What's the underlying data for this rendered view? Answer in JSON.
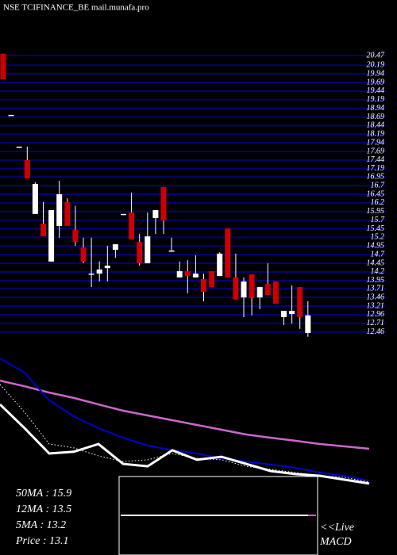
{
  "chart_data": {
    "type": "candlestick",
    "title": "NSE TCIFINANCE_BE mail.munafa.pro",
    "ylim": [
      12.2,
      20.7
    ],
    "yticks": [
      20.47,
      20.19,
      19.94,
      19.69,
      19.44,
      19.19,
      18.94,
      18.69,
      18.44,
      18.19,
      17.94,
      17.69,
      17.44,
      17.19,
      16.95,
      16.7,
      16.45,
      16.2,
      15.95,
      15.7,
      15.45,
      15.2,
      14.95,
      14.7,
      14.45,
      14.2,
      13.95,
      13.71,
      13.46,
      13.21,
      12.96,
      12.71,
      12.46
    ],
    "grid": true,
    "grid_color": "#000080",
    "up_color": "#ffffff",
    "down_color": "#cc0000",
    "open": [
      20.52,
      18.75,
      17.83,
      17.44,
      15.88,
      15.6,
      14.5,
      15.53,
      16.22,
      15.42,
      14.91,
      14.15,
      14.15,
      14.31,
      14.84,
      15.88,
      15.92,
      15.07,
      14.45,
      15.76,
      16.66,
      14.82,
      14.04,
      14.22,
      14.04,
      13.99,
      14.22,
      14.08,
      15.46,
      14.04,
      13.46,
      14.13,
      13.46,
      13.85,
      13.92,
      12.89,
      12.98,
      13.76,
      12.43
    ],
    "high": [
      20.52,
      18.75,
      17.83,
      17.83,
      16.8,
      16.22,
      15.99,
      16.84,
      16.33,
      16.11,
      15.19,
      15.19,
      14.5,
      14.96,
      15.0,
      15.88,
      16.5,
      15.3,
      15.92,
      15.99,
      16.66,
      15.19,
      14.5,
      14.54,
      14.68,
      14.15,
      14.22,
      14.77,
      15.46,
      14.73,
      14.04,
      14.13,
      13.76,
      14.45,
      13.92,
      13.07,
      13.81,
      13.76,
      13.35
    ],
    "low": [
      19.78,
      18.75,
      17.83,
      16.91,
      15.88,
      15.23,
      14.5,
      15.19,
      15.53,
      14.96,
      14.45,
      13.76,
      13.92,
      13.92,
      14.61,
      15.88,
      15.14,
      14.38,
      14.45,
      15.3,
      15.3,
      14.82,
      14.04,
      13.58,
      14.04,
      13.35,
      13.76,
      14.08,
      14.04,
      13.4,
      12.89,
      12.94,
      13.12,
      13.53,
      13.28,
      12.66,
      12.7,
      12.55,
      12.32
    ],
    "close": [
      19.78,
      18.75,
      17.83,
      16.91,
      16.75,
      15.23,
      15.99,
      16.45,
      15.53,
      15.07,
      14.5,
      14.15,
      14.27,
      14.38,
      15.0,
      15.88,
      15.14,
      14.45,
      15.23,
      15.99,
      15.69,
      14.82,
      14.22,
      14.08,
      14.15,
      13.62,
      13.76,
      14.73,
      14.04,
      13.4,
      13.92,
      13.44,
      13.76,
      13.53,
      13.28,
      13.07,
      13.07,
      12.89,
      12.94
    ],
    "indicator_ylim": [
      12.4,
      19
    ],
    "indicators": [
      {
        "color": "#cc66cc",
        "style": "solid",
        "width": 2.5,
        "values": [
          17.53,
          17.27,
          16.98,
          16.73,
          16.43,
          16.14,
          15.92,
          15.7,
          15.48,
          15.26,
          15.04,
          14.89,
          14.75,
          14.6,
          14.49,
          14.38
        ]
      },
      {
        "color": "#0000cc",
        "style": "solid",
        "width": 2,
        "values": [
          18.56,
          17.9,
          16.62,
          15.88,
          15.33,
          14.89,
          14.53,
          14.31,
          14.16,
          13.94,
          13.79,
          13.65,
          13.5,
          13.28,
          13.13,
          12.91
        ]
      },
      {
        "color": "#ffffff",
        "style": "dotted",
        "width": 1,
        "values": [
          17.35,
          16.07,
          14.6,
          14.42,
          14.05,
          13.79,
          13.87,
          14.16,
          13.94,
          13.87,
          13.57,
          13.43,
          13.28,
          13.13,
          13.06,
          12.84
        ]
      },
      {
        "color": "#ffffff",
        "style": "solid",
        "width": 3,
        "values": [
          16.43,
          15.33,
          14.16,
          14.24,
          14.6,
          13.68,
          13.57,
          14.31,
          13.87,
          14.01,
          13.68,
          13.35,
          13.21,
          13.13,
          12.95,
          12.77
        ]
      }
    ],
    "info_texts": [
      "50MA : 15.9",
      "12MA : 13.5",
      "5MA : 13.2",
      "Price  : 13.1"
    ],
    "live_label": "<<Live",
    "macd_label": "MACD"
  }
}
